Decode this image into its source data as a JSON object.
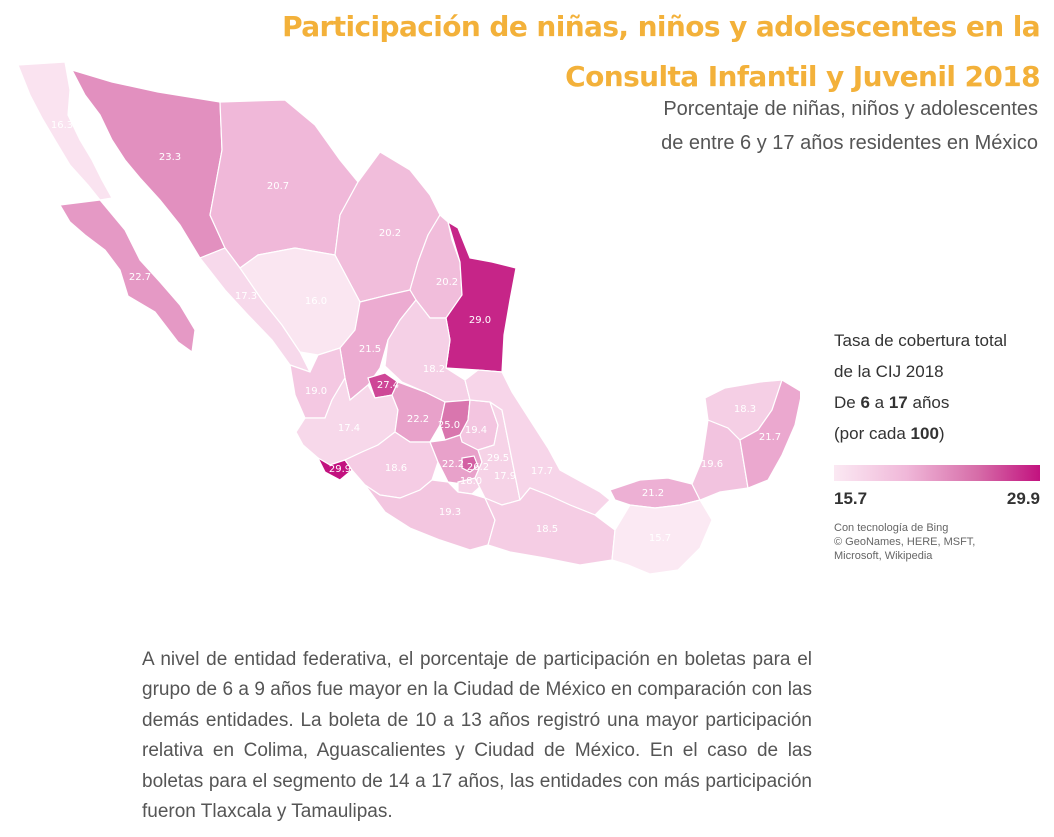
{
  "header": {
    "title_line1": "Participación de niñas, niños y adolescentes en la",
    "title_line2": "Consulta Infantil y Juvenil 2018",
    "subtitle_line1": "Porcentaje de niñas, niños y adolescentes",
    "subtitle_line2": "de entre 6 y 17 años  residentes en México"
  },
  "legend": {
    "line1": "Tasa de cobertura total",
    "line2": "de la CIJ 2018",
    "line3_pre": "De ",
    "line3_bold1": "6",
    "line3_mid": " a ",
    "line3_bold2": "17",
    "line3_post": " años",
    "line4_pre": "(por cada ",
    "line4_bold": "100",
    "line4_post": ")",
    "min_label": "15.7",
    "max_label": "29.9",
    "min_color": "#fbe9f3",
    "max_color": "#c2127f",
    "credits_line1": "Con tecnología de Bing",
    "credits_line2": "© GeoNames, HERE, MSFT,",
    "credits_line3": "Microsoft, Wikipedia"
  },
  "map_data": {
    "scale_min": 15.7,
    "scale_max": 29.9,
    "states": [
      {
        "name": "Baja California",
        "value": 16.3,
        "label": "16.3"
      },
      {
        "name": "Sonora",
        "value": 23.3,
        "label": "23.3"
      },
      {
        "name": "Chihuahua",
        "value": 20.7,
        "label": "20.7"
      },
      {
        "name": "Coahuila",
        "value": 20.2,
        "label": "20.2"
      },
      {
        "name": "Nuevo León",
        "value": 20.2,
        "label": "20.2"
      },
      {
        "name": "Tamaulipas",
        "value": 29.0,
        "label": "29.0"
      },
      {
        "name": "Baja California Sur",
        "value": 22.7,
        "label": "22.7"
      },
      {
        "name": "Sinaloa",
        "value": 17.3,
        "label": "17.3"
      },
      {
        "name": "Durango",
        "value": 16.0,
        "label": "16.0"
      },
      {
        "name": "Zacatecas",
        "value": 21.5,
        "label": "21.5"
      },
      {
        "name": "San Luis Potosí",
        "value": 18.2,
        "label": "18.2"
      },
      {
        "name": "Aguascalientes",
        "value": 27.4,
        "label": "27.4"
      },
      {
        "name": "Nayarit",
        "value": 19.0,
        "label": "19.0"
      },
      {
        "name": "Jalisco",
        "value": 17.4,
        "label": "17.4"
      },
      {
        "name": "Guanajuato",
        "value": 22.2,
        "label": "22.2"
      },
      {
        "name": "Querétaro",
        "value": 25.0,
        "label": "25.0"
      },
      {
        "name": "Hidalgo",
        "value": 19.4,
        "label": "19.4"
      },
      {
        "name": "Colima",
        "value": 29.9,
        "label": "29.9"
      },
      {
        "name": "Michoacán",
        "value": 18.6,
        "label": "18.6"
      },
      {
        "name": "Estado de México",
        "value": 22.2,
        "label": "22.2"
      },
      {
        "name": "Ciudad de México",
        "value": 26.2,
        "label": "26.2"
      },
      {
        "name": "Tlaxcala",
        "value": 29.5,
        "label": "29.5"
      },
      {
        "name": "Morelos",
        "value": 18.0,
        "label": "18.0"
      },
      {
        "name": "Puebla",
        "value": 17.9,
        "label": "17.9"
      },
      {
        "name": "Veracruz",
        "value": 17.7,
        "label": "17.7"
      },
      {
        "name": "Guerrero",
        "value": 19.3,
        "label": "19.3"
      },
      {
        "name": "Oaxaca",
        "value": 18.5,
        "label": "18.5"
      },
      {
        "name": "Tabasco",
        "value": 21.2,
        "label": "21.2"
      },
      {
        "name": "Chiapas",
        "value": 15.7,
        "label": "15.7"
      },
      {
        "name": "Campeche",
        "value": 19.6,
        "label": "19.6"
      },
      {
        "name": "Yucatán",
        "value": 18.3,
        "label": "18.3"
      },
      {
        "name": "Quintana Roo",
        "value": 21.7,
        "label": "21.7"
      }
    ]
  },
  "body_text": "A nivel de entidad federativa, el porcentaje  de participación en boletas para el grupo de 6 a 9 años fue mayor en la Ciudad de México en comparación con las demás entidades. La boleta de 10 a 13 años registró una mayor participación relativa en Colima, Aguascalientes y Ciudad de México. En el caso de las boletas para el segmento de 14 a 17 años, las entidades con más participación fueron Tlaxcala y Tamaulipas."
}
